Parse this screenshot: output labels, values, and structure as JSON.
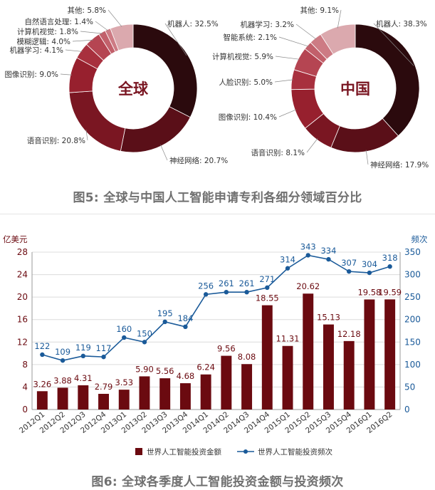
{
  "figure5": {
    "caption": "图5: 全球与中国人工智能申请专利各细分领域百分比",
    "chart_data": [
      {
        "type": "pie",
        "title": "全球",
        "slices": [
          {
            "label": "机器人: 32.5%",
            "value": 32.5,
            "color": "#2b0a0d"
          },
          {
            "label": "神经网络: 20.7%",
            "value": 20.7,
            "color": "#5a0f18"
          },
          {
            "label": "语音识别: 20.8%",
            "value": 20.8,
            "color": "#7a1622"
          },
          {
            "label": "图像识别: 9.0%",
            "value": 9.0,
            "color": "#97202e"
          },
          {
            "label": "机器学习: 4.1%",
            "value": 4.1,
            "color": "#a8303e"
          },
          {
            "label": "模糊逻辑: 4.0%",
            "value": 4.0,
            "color": "#b54552"
          },
          {
            "label": "计算机视觉: 1.8%",
            "value": 1.8,
            "color": "#c2606b"
          },
          {
            "label": "自然语言处理: 1.4%",
            "value": 1.4,
            "color": "#cd7b84"
          },
          {
            "label": "其他: 5.8%",
            "value": 5.8,
            "color": "#dba9ae"
          }
        ]
      },
      {
        "type": "pie",
        "title": "中国",
        "slices": [
          {
            "label": "机器人: 38.3%",
            "value": 38.3,
            "color": "#2b0a0d"
          },
          {
            "label": "神经网络: 17.9%",
            "value": 17.9,
            "color": "#5a0f18"
          },
          {
            "label": "语音识别: 8.1%",
            "value": 8.1,
            "color": "#7a1622"
          },
          {
            "label": "图像识别: 10.4%",
            "value": 10.4,
            "color": "#97202e"
          },
          {
            "label": "人脸识别: 5.0%",
            "value": 5.0,
            "color": "#a8303e"
          },
          {
            "label": "计算机视觉: 5.9%",
            "value": 5.9,
            "color": "#b54552"
          },
          {
            "label": "智能系统: 2.1%",
            "value": 2.1,
            "color": "#c2606b"
          },
          {
            "label": "机器学习: 3.2%",
            "value": 3.2,
            "color": "#cd7b84"
          },
          {
            "label": "其他: 9.1%",
            "value": 9.1,
            "color": "#dba9ae"
          }
        ]
      }
    ]
  },
  "figure6": {
    "caption": "图6: 全球各季度人工智能投资金额与投资频次",
    "chart_data": {
      "type": "bar",
      "categories": [
        "2012Q1",
        "2012Q2",
        "2012Q3",
        "2012Q4",
        "2013Q1",
        "2013Q2",
        "2013Q3",
        "2013Q4",
        "2014Q1",
        "2014Q2",
        "2014Q3",
        "2014Q4",
        "2015Q1",
        "2015Q2",
        "2015Q3",
        "2015Q4",
        "2016Q1",
        "2016Q2"
      ],
      "series": [
        {
          "name": "世界人工智能投资金额",
          "kind": "bar",
          "axis": "left",
          "color": "#6b0a10",
          "values": [
            3.26,
            3.88,
            4.31,
            2.79,
            3.53,
            5.9,
            5.56,
            4.68,
            6.24,
            9.56,
            8.08,
            18.55,
            11.31,
            20.62,
            15.13,
            12.18,
            19.58,
            19.59
          ],
          "labels": [
            "3.26",
            "3.88",
            "4.31",
            "2.79",
            "3.53",
            "5.90",
            "5.56",
            "4.68",
            "6.24",
            "9.56",
            "8.08",
            "18.55",
            "11.31",
            "20.62",
            "15.13",
            "12.18",
            "19.58",
            "19.59"
          ]
        },
        {
          "name": "世界人工智能投资频次",
          "kind": "line",
          "axis": "right",
          "color": "#1a5a99",
          "values": [
            122,
            109,
            119,
            117,
            160,
            150,
            195,
            184,
            256,
            261,
            261,
            271,
            314,
            343,
            334,
            307,
            304,
            318
          ],
          "labels": [
            "122",
            "109",
            "119",
            "117",
            "160",
            "150",
            "195",
            "184",
            "256",
            "261",
            "261",
            "271",
            "314",
            "343",
            "334",
            "307",
            "304",
            "318"
          ]
        }
      ],
      "left_axis": {
        "title": "亿美元",
        "ylim": [
          0,
          28
        ],
        "ticks": [
          "0",
          "4",
          "8",
          "12",
          "16",
          "20",
          "24",
          "28"
        ],
        "color": "#6b0a10"
      },
      "right_axis": {
        "title": "频次",
        "ylim": [
          0,
          350
        ],
        "ticks": [
          "0",
          "50",
          "100",
          "150",
          "200",
          "250",
          "300",
          "350"
        ],
        "color": "#1a5a99"
      },
      "grid": true,
      "legend_position": "bottom"
    }
  }
}
